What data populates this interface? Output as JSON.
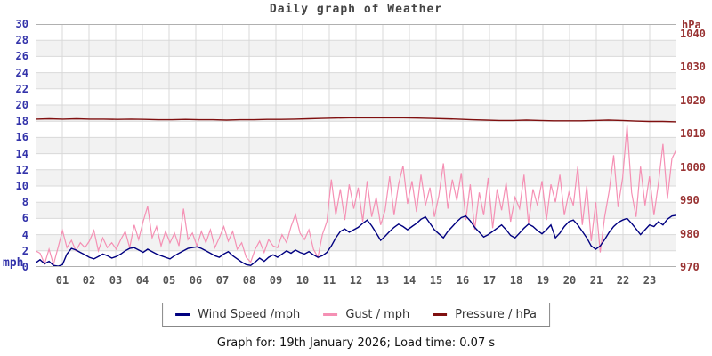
{
  "title": "Daily graph of Weather",
  "footer": {
    "text": "Graph for: 19th January 2026; Load time: 0.07 s"
  },
  "legend": [
    {
      "label": "Wind Speed /mph",
      "color": "#000080"
    },
    {
      "label": "Gust / mph",
      "color": "#f590b4"
    },
    {
      "label": "Pressure / hPa",
      "color": "#801010"
    }
  ],
  "x_axis": {
    "labels": [
      "01",
      "02",
      "03",
      "04",
      "05",
      "06",
      "07",
      "08",
      "09",
      "10",
      "11",
      "12",
      "13",
      "14",
      "15",
      "16",
      "17",
      "18",
      "19",
      "20",
      "21",
      "22",
      "23"
    ]
  },
  "chart_data": {
    "type": "line",
    "title": "Daily graph of Weather",
    "x_unit": "hour of day",
    "x_range": [
      0,
      24
    ],
    "x_divisions": 24,
    "grid": true,
    "legend_position": "bottom",
    "style": {
      "band_fill": "#f2f2f2",
      "grid_color": "#d9d9d9",
      "border_color": "#b0b0b0"
    },
    "left_axis": {
      "label": "mph",
      "min": 0,
      "max": 30,
      "step": 2,
      "color": "#3333aa"
    },
    "right_axis": {
      "label": "hPa",
      "min": 970,
      "max": 1040,
      "plot_max": 1042.8,
      "step": 10,
      "color": "#993333"
    },
    "series": [
      {
        "name": "Gust / mph",
        "axis": "left",
        "color": "#f590b4",
        "width": 1.2,
        "values": [
          2.0,
          1.7,
          0.4,
          2.2,
          0.3,
          2.4,
          4.5,
          2.4,
          3.3,
          2.0,
          3.0,
          2.4,
          3.2,
          4.5,
          2.0,
          3.6,
          2.4,
          3.0,
          2.2,
          3.4,
          4.4,
          2.4,
          5.2,
          3.4,
          5.6,
          7.5,
          3.6,
          5.0,
          2.6,
          4.4,
          3.0,
          4.2,
          2.6,
          7.2,
          3.4,
          4.2,
          2.6,
          4.4,
          3.0,
          4.6,
          2.4,
          3.6,
          5.0,
          3.2,
          4.4,
          2.2,
          3.0,
          1.2,
          0.6,
          2.2,
          3.2,
          1.8,
          3.4,
          2.6,
          2.4,
          4.0,
          3.0,
          5.0,
          6.5,
          4.2,
          3.4,
          4.6,
          2.2,
          1.2,
          4.0,
          5.6,
          10.8,
          6.4,
          9.6,
          5.8,
          10.2,
          7.2,
          9.8,
          5.6,
          10.6,
          6.2,
          8.6,
          5.2,
          7.0,
          11.2,
          6.4,
          10.2,
          12.5,
          7.8,
          10.6,
          6.8,
          11.4,
          7.6,
          9.8,
          6.2,
          8.8,
          12.8,
          7.2,
          10.8,
          8.2,
          11.6,
          5.8,
          10.2,
          4.6,
          9.2,
          6.4,
          11.0,
          4.8,
          9.6,
          7.0,
          10.4,
          5.6,
          8.6,
          7.2,
          11.4,
          5.4,
          9.6,
          7.6,
          10.6,
          5.8,
          10.2,
          8.0,
          11.4,
          6.4,
          9.2,
          7.6,
          12.4,
          5.2,
          10.0,
          3.2,
          8.0,
          1.8,
          6.2,
          9.4,
          13.8,
          7.4,
          11.0,
          17.5,
          9.2,
          6.2,
          12.4,
          7.6,
          11.2,
          6.4,
          10.4,
          15.2,
          8.4,
          13.4,
          14.5
        ]
      },
      {
        "name": "Wind Speed /mph",
        "axis": "left",
        "color": "#000080",
        "width": 1.4,
        "values": [
          0.5,
          0.9,
          0.4,
          0.7,
          0.2,
          0.1,
          0.3,
          1.6,
          2.3,
          2.1,
          1.8,
          1.5,
          1.2,
          1.0,
          1.3,
          1.6,
          1.4,
          1.1,
          1.3,
          1.6,
          2.0,
          2.3,
          2.4,
          2.1,
          1.8,
          2.2,
          1.9,
          1.6,
          1.4,
          1.2,
          1.0,
          1.4,
          1.7,
          2.0,
          2.3,
          2.4,
          2.5,
          2.3,
          2.0,
          1.7,
          1.4,
          1.2,
          1.6,
          1.9,
          1.4,
          1.0,
          0.6,
          0.3,
          0.2,
          0.6,
          1.1,
          0.7,
          1.2,
          1.5,
          1.2,
          1.6,
          2.0,
          1.7,
          2.1,
          1.8,
          1.6,
          1.9,
          1.5,
          1.2,
          1.4,
          1.8,
          2.6,
          3.6,
          4.4,
          4.7,
          4.3,
          4.6,
          4.9,
          5.4,
          5.8,
          5.1,
          4.2,
          3.3,
          3.8,
          4.4,
          4.9,
          5.3,
          5.0,
          4.6,
          5.0,
          5.4,
          5.9,
          6.2,
          5.4,
          4.6,
          4.1,
          3.6,
          4.4,
          5.0,
          5.6,
          6.1,
          6.3,
          5.7,
          4.9,
          4.3,
          3.7,
          4.0,
          4.4,
          4.8,
          5.2,
          4.6,
          3.9,
          3.6,
          4.2,
          4.8,
          5.3,
          5.0,
          4.5,
          4.1,
          4.6,
          5.2,
          3.6,
          4.2,
          5.0,
          5.6,
          5.8,
          5.2,
          4.4,
          3.6,
          2.6,
          2.2,
          2.6,
          3.4,
          4.3,
          5.0,
          5.5,
          5.8,
          6.0,
          5.4,
          4.7,
          4.0,
          4.6,
          5.2,
          5.0,
          5.6,
          5.2,
          5.9,
          6.3,
          6.4
        ]
      },
      {
        "name": "Pressure / hPa",
        "axis": "right",
        "color": "#801010",
        "width": 1.4,
        "values": [
          1014.3,
          1014.4,
          1014.3,
          1014.4,
          1014.3,
          1014.3,
          1014.2,
          1014.3,
          1014.2,
          1014.1,
          1014.1,
          1014.2,
          1014.1,
          1014.1,
          1014.0,
          1014.1,
          1014.1,
          1014.2,
          1014.2,
          1014.3,
          1014.4,
          1014.5,
          1014.6,
          1014.7,
          1014.7,
          1014.7,
          1014.7,
          1014.7,
          1014.6,
          1014.5,
          1014.4,
          1014.3,
          1014.1,
          1014.0,
          1013.9,
          1013.9,
          1014.0,
          1013.9,
          1013.8,
          1013.8,
          1013.8,
          1013.9,
          1014.0,
          1013.9,
          1013.7,
          1013.6,
          1013.6,
          1013.5
        ]
      }
    ]
  }
}
